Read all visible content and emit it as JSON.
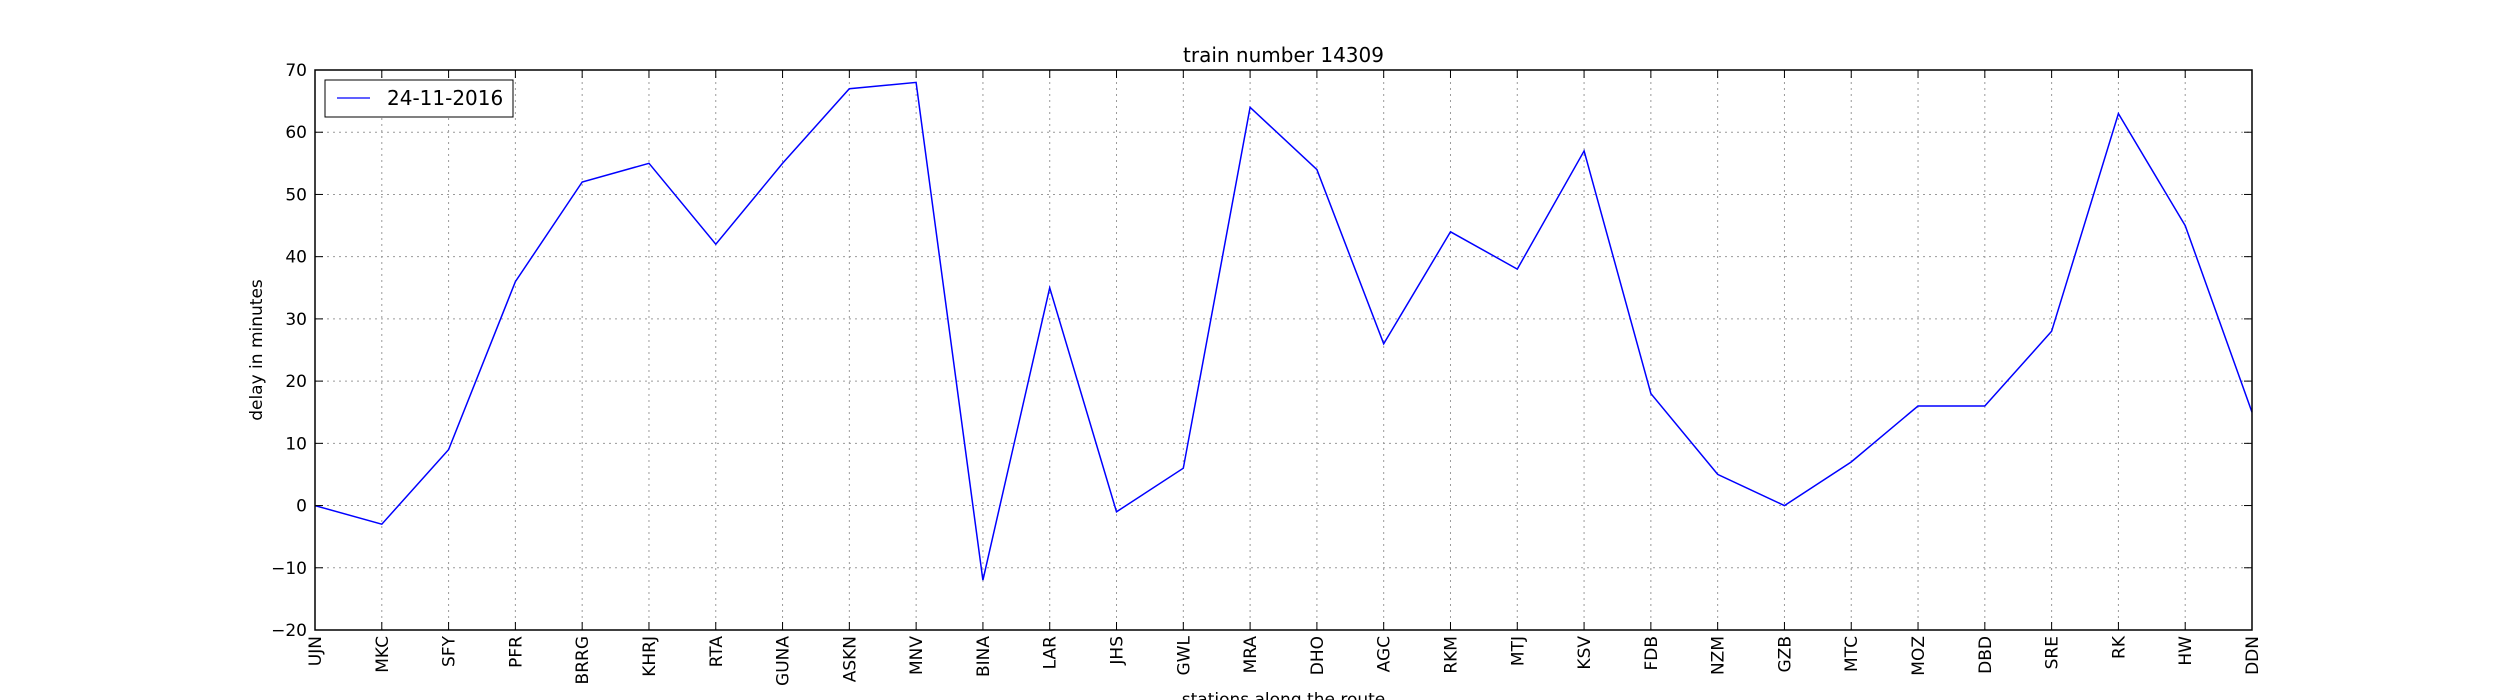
{
  "chart_data": {
    "type": "line",
    "title": "train number 14309",
    "xlabel": "stations along the route",
    "ylabel": "delay in minutes",
    "categories": [
      "UJN",
      "MKC",
      "SFY",
      "PFR",
      "BRRG",
      "KHRJ",
      "RTA",
      "GUNA",
      "ASKN",
      "MNV",
      "BINA",
      "LAR",
      "JHS",
      "GWL",
      "MRA",
      "DHO",
      "AGC",
      "RKM",
      "MTJ",
      "KSV",
      "FDB",
      "NZM",
      "GZB",
      "MTC",
      "MOZ",
      "DBD",
      "SRE",
      "RK",
      "HW",
      "DDN"
    ],
    "series": [
      {
        "name": "24-11-2016",
        "color": "#0000ff",
        "values": [
          0,
          -3,
          9,
          36,
          52,
          55,
          42,
          55,
          67,
          68,
          -12,
          35,
          -1,
          6,
          64,
          54,
          26,
          44,
          38,
          57,
          18,
          5,
          0,
          7,
          16,
          16,
          28,
          63,
          45,
          15
        ]
      }
    ],
    "ylim": [
      -20,
      70
    ],
    "yticks": [
      -20,
      -10,
      0,
      10,
      20,
      30,
      40,
      50,
      60,
      70
    ],
    "grid": true,
    "legend_position": "top-left"
  }
}
